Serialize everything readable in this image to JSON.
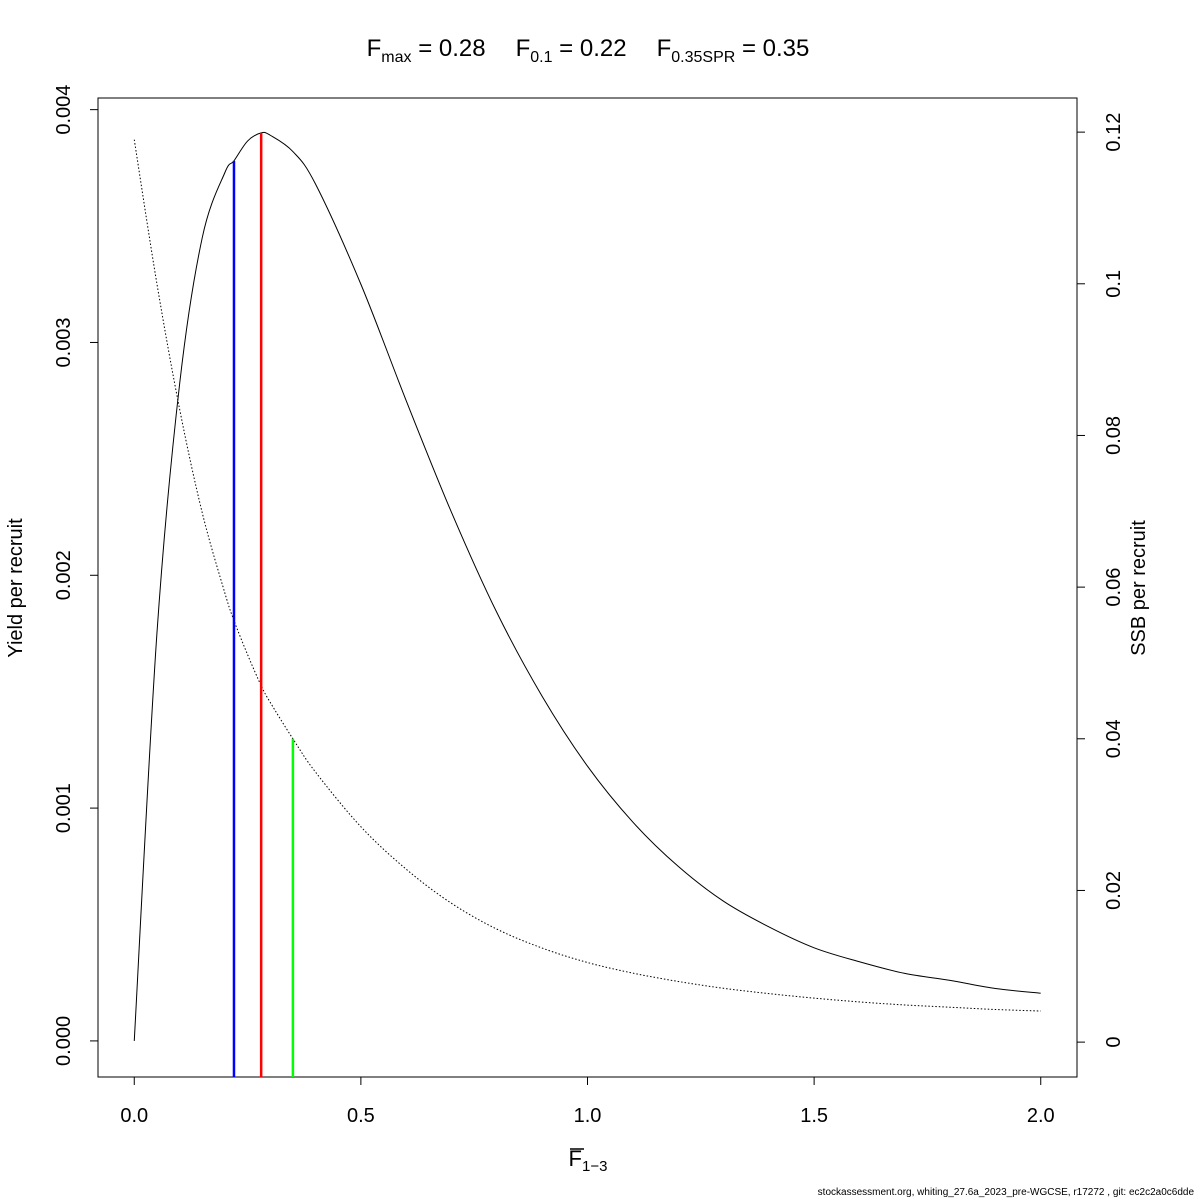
{
  "title": {
    "segments": [
      {
        "main": "F",
        "sub": "max",
        "rest": " = 0.28"
      },
      {
        "main": "F",
        "sub": "0.1",
        "rest": " = 0.22"
      },
      {
        "main": "F",
        "sub": "0.35SPR",
        "rest": " = 0.35"
      }
    ]
  },
  "xlabel": {
    "main": "F",
    "sub": "1−3",
    "overline": true
  },
  "ylabel_left": "Yield per recruit",
  "ylabel_right": "SSB per recruit",
  "footer": "stockassessment.org, whiting_27.6a_2023_pre-WGCSE, r17272 , git: ec2c2a0c6dde",
  "colors": {
    "fmax": "#ff0000",
    "f01": "#0000ff",
    "f035": "#00ff00",
    "curve": "#000000"
  },
  "chart_data": {
    "type": "line",
    "xlim": [
      -0.08,
      2.08
    ],
    "ylim_left": [
      -0.000155,
      0.00405
    ],
    "ylim_right": [
      -0.0046,
      0.1245
    ],
    "x_ticks": [
      "0.0",
      "0.5",
      "1.0",
      "1.5",
      "2.0"
    ],
    "x_tick_values": [
      0,
      0.5,
      1.0,
      1.5,
      2.0
    ],
    "y_left_ticks": [
      "0.000",
      "0.001",
      "0.002",
      "0.003",
      "0.004"
    ],
    "y_left_tick_values": [
      0,
      0.001,
      0.002,
      0.003,
      0.004
    ],
    "y_right_ticks": [
      "0",
      "0.02",
      "0.04",
      "0.06",
      "0.08",
      "0.1",
      "0.12"
    ],
    "y_right_tick_values": [
      0,
      0.02,
      0.04,
      0.06,
      0.08,
      0.1,
      0.12
    ],
    "series": [
      {
        "name": "Yield per recruit",
        "axis": "left",
        "style": "solid",
        "x": [
          0,
          0.05,
          0.1,
          0.15,
          0.2,
          0.22,
          0.25,
          0.28,
          0.3,
          0.35,
          0.4,
          0.5,
          0.6,
          0.7,
          0.8,
          0.9,
          1.0,
          1.1,
          1.2,
          1.3,
          1.4,
          1.5,
          1.6,
          1.7,
          1.8,
          1.9,
          2.0
        ],
        "values": [
          0,
          0.00175,
          0.00282,
          0.00345,
          0.00373,
          0.00378,
          0.003865,
          0.0039,
          0.00389,
          0.00382,
          0.00368,
          0.00325,
          0.00275,
          0.00227,
          0.00184,
          0.00148,
          0.00118,
          0.00094,
          0.00075,
          0.0006,
          0.00049,
          0.0004,
          0.00034,
          0.00029,
          0.00026,
          0.000225,
          0.000205
        ]
      },
      {
        "name": "SSB per recruit",
        "axis": "right",
        "style": "dotted",
        "x": [
          0,
          0.05,
          0.1,
          0.15,
          0.2,
          0.22,
          0.25,
          0.28,
          0.3,
          0.35,
          0.4,
          0.5,
          0.6,
          0.7,
          0.8,
          0.9,
          1.0,
          1.1,
          1.2,
          1.3,
          1.4,
          1.5,
          1.6,
          1.7,
          1.8,
          1.9,
          2.0
        ],
        "values": [
          0.119,
          0.1,
          0.0835,
          0.0698,
          0.0592,
          0.0556,
          0.0511,
          0.047,
          0.0448,
          0.04,
          0.0356,
          0.0284,
          0.0228,
          0.0183,
          0.0149,
          0.0124,
          0.0105,
          0.0091,
          0.008,
          0.0071,
          0.0064,
          0.0058,
          0.0053,
          0.0049,
          0.0046,
          0.0043,
          0.0041
        ]
      }
    ],
    "reference_lines": [
      {
        "label": "F0.1",
        "x": 0.22,
        "color": "#0000ff",
        "axis": "left",
        "top": 0.00378
      },
      {
        "label": "Fmax",
        "x": 0.28,
        "color": "#ff0000",
        "axis": "left",
        "top": 0.0039
      },
      {
        "label": "F0.35SPR",
        "x": 0.35,
        "color": "#00ff00",
        "axis": "right",
        "top": 0.04
      }
    ]
  }
}
